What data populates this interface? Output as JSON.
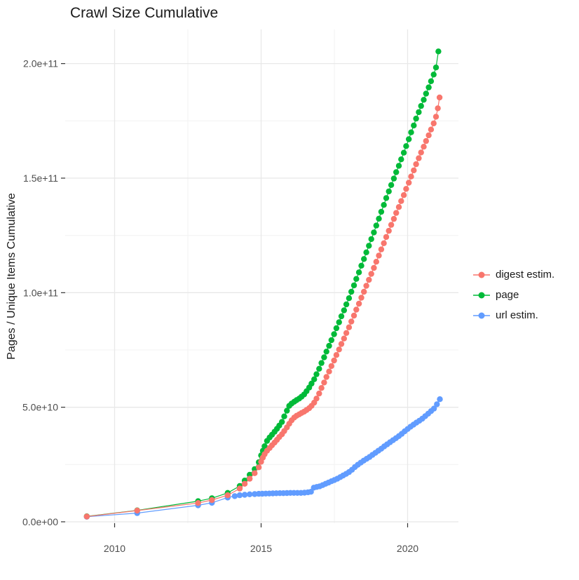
{
  "title": "Crawl Size Cumulative",
  "axes": {
    "x": {
      "tick_values": [
        2010,
        2015,
        2020
      ],
      "tick_labels": [
        "2010",
        "2015",
        "2020"
      ],
      "minor_tick_values": [
        2012.5,
        2017.5
      ]
    },
    "y": {
      "label": "Pages / Unique Items Cumulative",
      "tick_values_e9": [
        0,
        50,
        100,
        150,
        200
      ],
      "tick_labels": [
        "0.0e+00",
        "5.0e+10",
        "1.0e+11",
        "1.5e+11",
        "2.0e+11"
      ],
      "minor_tick_values_e9": [
        25,
        75,
        125,
        175
      ]
    }
  },
  "legend": {
    "position": "right",
    "entries": [
      {
        "label": "digest estim.",
        "color": "#F8766D"
      },
      {
        "label": "page",
        "color": "#00BA38"
      },
      {
        "label": "url estim.",
        "color": "#619CFF"
      }
    ]
  },
  "colors": {
    "digest": "#F8766D",
    "page": "#00BA38",
    "url": "#619CFF",
    "grid_major": "#e8e8e8",
    "grid_minor": "#f3f3f3",
    "tick_mark": "#333333",
    "axis_text": "#4d4d4d"
  },
  "chart_data": {
    "type": "scatter",
    "subtype": "line+point cumulative time series",
    "title": "Crawl Size Cumulative",
    "xlabel": "",
    "ylabel": "Pages / Unique Items Cumulative",
    "xlim": [
      2008.31,
      2021.73
    ],
    "ylim": [
      0,
      214900000000.0
    ],
    "x_unit": "year",
    "value_scale": 1000000000.0,
    "value_note": "series point values are in billions (multiply by 1e9 for absolute counts)",
    "grid": true,
    "legend_position": "right",
    "series": [
      {
        "name": "digest estim.",
        "color": "#F8766D",
        "points": [
          [
            2009.05,
            2.3
          ],
          [
            2010.77,
            4.9
          ],
          [
            2012.85,
            8.2
          ],
          [
            2013.32,
            9.5
          ],
          [
            2013.86,
            11.6
          ],
          [
            2014.27,
            14.5
          ],
          [
            2014.44,
            16.6
          ],
          [
            2014.61,
            18.8
          ],
          [
            2014.78,
            21.2
          ],
          [
            2014.92,
            23.8
          ],
          [
            2015.0,
            26.2
          ],
          [
            2015.06,
            28.0
          ],
          [
            2015.12,
            29.5
          ],
          [
            2015.2,
            31.0
          ],
          [
            2015.29,
            32.2
          ],
          [
            2015.37,
            33.4
          ],
          [
            2015.46,
            34.6
          ],
          [
            2015.54,
            35.8
          ],
          [
            2015.62,
            37.0
          ],
          [
            2015.71,
            38.2
          ],
          [
            2015.79,
            39.6
          ],
          [
            2015.88,
            41.2
          ],
          [
            2015.96,
            42.8
          ],
          [
            2016.04,
            44.3
          ],
          [
            2016.13,
            45.5
          ],
          [
            2016.21,
            46.3
          ],
          [
            2016.3,
            46.9
          ],
          [
            2016.38,
            47.5
          ],
          [
            2016.47,
            48.1
          ],
          [
            2016.55,
            48.8
          ],
          [
            2016.64,
            49.6
          ],
          [
            2016.72,
            50.6
          ],
          [
            2016.81,
            52.0
          ],
          [
            2016.89,
            53.8
          ],
          [
            2016.98,
            56.0
          ],
          [
            2017.06,
            58.4
          ],
          [
            2017.15,
            60.8
          ],
          [
            2017.23,
            63.2
          ],
          [
            2017.32,
            65.6
          ],
          [
            2017.4,
            68.0
          ],
          [
            2017.49,
            70.4
          ],
          [
            2017.57,
            72.8
          ],
          [
            2017.66,
            75.2
          ],
          [
            2017.74,
            77.6
          ],
          [
            2017.83,
            80.0
          ],
          [
            2017.91,
            82.4
          ],
          [
            2018.0,
            84.9
          ],
          [
            2018.08,
            87.4
          ],
          [
            2018.17,
            90.0
          ],
          [
            2018.25,
            92.6
          ],
          [
            2018.34,
            95.2
          ],
          [
            2018.42,
            97.8
          ],
          [
            2018.51,
            100.4
          ],
          [
            2018.59,
            103.0
          ],
          [
            2018.68,
            105.6
          ],
          [
            2018.76,
            108.2
          ],
          [
            2018.85,
            110.8
          ],
          [
            2018.93,
            113.5
          ],
          [
            2019.02,
            116.2
          ],
          [
            2019.1,
            118.9
          ],
          [
            2019.19,
            121.6
          ],
          [
            2019.27,
            124.3
          ],
          [
            2019.36,
            127.0
          ],
          [
            2019.44,
            129.6
          ],
          [
            2019.53,
            132.2
          ],
          [
            2019.61,
            134.8
          ],
          [
            2019.7,
            137.4
          ],
          [
            2019.78,
            140.0
          ],
          [
            2019.87,
            142.6
          ],
          [
            2019.95,
            145.3
          ],
          [
            2020.04,
            148.0
          ],
          [
            2020.12,
            150.7
          ],
          [
            2020.21,
            153.4
          ],
          [
            2020.29,
            156.1
          ],
          [
            2020.38,
            158.7
          ],
          [
            2020.46,
            161.2
          ],
          [
            2020.55,
            163.7
          ],
          [
            2020.63,
            166.2
          ],
          [
            2020.72,
            168.7
          ],
          [
            2020.8,
            171.2
          ],
          [
            2020.89,
            173.9
          ],
          [
            2020.97,
            176.8
          ],
          [
            2021.03,
            180.5
          ],
          [
            2021.09,
            185.2
          ]
        ]
      },
      {
        "name": "page",
        "color": "#00BA38",
        "points": [
          [
            2009.05,
            2.4
          ],
          [
            2010.77,
            5.0
          ],
          [
            2012.85,
            9.0
          ],
          [
            2013.32,
            10.3
          ],
          [
            2013.86,
            12.6
          ],
          [
            2014.27,
            15.6
          ],
          [
            2014.44,
            18.0
          ],
          [
            2014.61,
            20.5
          ],
          [
            2014.78,
            23.0
          ],
          [
            2014.92,
            26.0
          ],
          [
            2015.0,
            29.0
          ],
          [
            2015.06,
            31.0
          ],
          [
            2015.12,
            33.0
          ],
          [
            2015.2,
            35.3
          ],
          [
            2015.29,
            36.8
          ],
          [
            2015.37,
            38.0
          ],
          [
            2015.46,
            39.3
          ],
          [
            2015.54,
            40.6
          ],
          [
            2015.62,
            42.0
          ],
          [
            2015.71,
            43.6
          ],
          [
            2015.79,
            46.0
          ],
          [
            2015.88,
            48.5
          ],
          [
            2015.96,
            50.6
          ],
          [
            2016.04,
            51.6
          ],
          [
            2016.13,
            52.4
          ],
          [
            2016.21,
            53.1
          ],
          [
            2016.3,
            53.8
          ],
          [
            2016.38,
            54.6
          ],
          [
            2016.47,
            55.6
          ],
          [
            2016.55,
            57.0
          ],
          [
            2016.64,
            58.6
          ],
          [
            2016.72,
            60.3
          ],
          [
            2016.81,
            62.2
          ],
          [
            2016.89,
            64.4
          ],
          [
            2016.98,
            66.8
          ],
          [
            2017.06,
            69.3
          ],
          [
            2017.15,
            71.8
          ],
          [
            2017.23,
            74.3
          ],
          [
            2017.32,
            76.8
          ],
          [
            2017.4,
            79.3
          ],
          [
            2017.49,
            81.9
          ],
          [
            2017.57,
            84.5
          ],
          [
            2017.66,
            87.1
          ],
          [
            2017.74,
            89.7
          ],
          [
            2017.83,
            92.3
          ],
          [
            2017.91,
            94.9
          ],
          [
            2018.0,
            97.6
          ],
          [
            2018.08,
            100.4
          ],
          [
            2018.17,
            103.2
          ],
          [
            2018.25,
            106.0
          ],
          [
            2018.34,
            108.9
          ],
          [
            2018.42,
            111.8
          ],
          [
            2018.51,
            114.7
          ],
          [
            2018.59,
            117.6
          ],
          [
            2018.68,
            120.5
          ],
          [
            2018.76,
            123.4
          ],
          [
            2018.85,
            126.3
          ],
          [
            2018.93,
            129.3
          ],
          [
            2019.02,
            132.3
          ],
          [
            2019.1,
            135.3
          ],
          [
            2019.19,
            138.3
          ],
          [
            2019.27,
            141.3
          ],
          [
            2019.36,
            144.2
          ],
          [
            2019.44,
            147.0
          ],
          [
            2019.53,
            149.8
          ],
          [
            2019.61,
            152.6
          ],
          [
            2019.7,
            155.4
          ],
          [
            2019.78,
            158.2
          ],
          [
            2019.87,
            161.1
          ],
          [
            2019.95,
            164.0
          ],
          [
            2020.04,
            167.0
          ],
          [
            2020.12,
            170.0
          ],
          [
            2020.21,
            173.0
          ],
          [
            2020.29,
            176.0
          ],
          [
            2020.38,
            178.8
          ],
          [
            2020.46,
            181.5
          ],
          [
            2020.55,
            184.2
          ],
          [
            2020.63,
            186.9
          ],
          [
            2020.72,
            189.6
          ],
          [
            2020.8,
            192.3
          ],
          [
            2020.89,
            195.2
          ],
          [
            2020.97,
            198.3
          ],
          [
            2021.05,
            205.3
          ]
        ]
      },
      {
        "name": "url estim.",
        "color": "#619CFF",
        "points": [
          [
            2009.05,
            2.2
          ],
          [
            2010.77,
            3.8
          ],
          [
            2012.85,
            7.2
          ],
          [
            2013.32,
            8.3
          ],
          [
            2013.86,
            10.6
          ],
          [
            2014.1,
            11.2
          ],
          [
            2014.27,
            11.6
          ],
          [
            2014.44,
            11.8
          ],
          [
            2014.61,
            12.0
          ],
          [
            2014.78,
            12.1
          ],
          [
            2014.92,
            12.2
          ],
          [
            2015.04,
            12.25
          ],
          [
            2015.16,
            12.3
          ],
          [
            2015.28,
            12.35
          ],
          [
            2015.4,
            12.4
          ],
          [
            2015.52,
            12.45
          ],
          [
            2015.64,
            12.5
          ],
          [
            2015.76,
            12.5
          ],
          [
            2015.88,
            12.55
          ],
          [
            2016.0,
            12.6
          ],
          [
            2016.12,
            12.6
          ],
          [
            2016.24,
            12.6
          ],
          [
            2016.36,
            12.6
          ],
          [
            2016.48,
            12.7
          ],
          [
            2016.6,
            12.9
          ],
          [
            2016.7,
            13.1
          ],
          [
            2016.8,
            14.9
          ],
          [
            2016.9,
            15.2
          ],
          [
            2017.0,
            15.5
          ],
          [
            2017.1,
            16.0
          ],
          [
            2017.2,
            16.6
          ],
          [
            2017.3,
            17.1
          ],
          [
            2017.4,
            17.7
          ],
          [
            2017.5,
            18.2
          ],
          [
            2017.6,
            18.8
          ],
          [
            2017.7,
            19.5
          ],
          [
            2017.8,
            20.2
          ],
          [
            2017.9,
            20.9
          ],
          [
            2018.0,
            21.7
          ],
          [
            2018.1,
            22.7
          ],
          [
            2018.2,
            23.9
          ],
          [
            2018.3,
            24.9
          ],
          [
            2018.4,
            25.8
          ],
          [
            2018.5,
            26.7
          ],
          [
            2018.6,
            27.5
          ],
          [
            2018.7,
            28.3
          ],
          [
            2018.8,
            29.2
          ],
          [
            2018.9,
            30.1
          ],
          [
            2019.0,
            31.0
          ],
          [
            2019.1,
            31.9
          ],
          [
            2019.2,
            32.9
          ],
          [
            2019.3,
            33.8
          ],
          [
            2019.4,
            34.7
          ],
          [
            2019.5,
            35.6
          ],
          [
            2019.6,
            36.5
          ],
          [
            2019.7,
            37.4
          ],
          [
            2019.8,
            38.4
          ],
          [
            2019.9,
            39.5
          ],
          [
            2020.0,
            40.5
          ],
          [
            2020.1,
            41.5
          ],
          [
            2020.2,
            42.4
          ],
          [
            2020.3,
            43.3
          ],
          [
            2020.4,
            44.1
          ],
          [
            2020.5,
            45.0
          ],
          [
            2020.6,
            46.1
          ],
          [
            2020.7,
            47.2
          ],
          [
            2020.8,
            48.3
          ],
          [
            2020.9,
            49.4
          ],
          [
            2021.0,
            51.3
          ],
          [
            2021.1,
            53.5
          ]
        ]
      }
    ]
  }
}
